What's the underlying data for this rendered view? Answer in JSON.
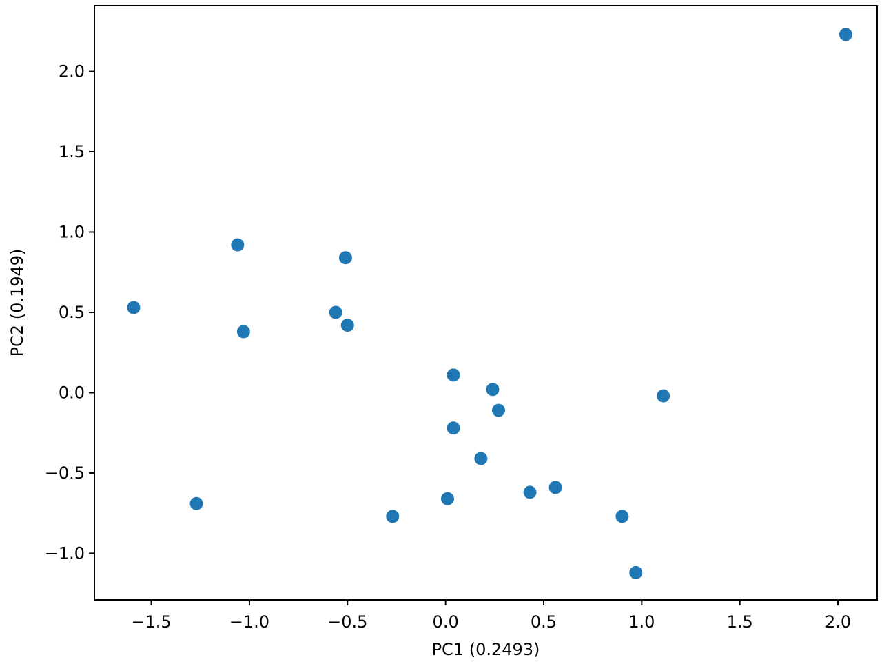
{
  "chart_data": {
    "type": "scatter",
    "title": "",
    "xlabel": "PC1 (0.2493)",
    "ylabel": "PC2 (0.1949)",
    "xlim": [
      -1.79,
      2.2
    ],
    "ylim": [
      -1.29,
      2.41
    ],
    "xticks": [
      -1.5,
      -1.0,
      -0.5,
      0.0,
      0.5,
      1.0,
      1.5,
      2.0
    ],
    "xtick_labels": [
      "−1.5",
      "−1.0",
      "−0.5",
      "0.0",
      "0.5",
      "1.0",
      "1.5",
      "2.0"
    ],
    "yticks": [
      -1.0,
      -0.5,
      0.0,
      0.5,
      1.0,
      1.5,
      2.0
    ],
    "ytick_labels": [
      "−1.0",
      "−0.5",
      "0.0",
      "0.5",
      "1.0",
      "1.5",
      "2.0"
    ],
    "grid": false,
    "marker_color": "#1f77b4",
    "points": [
      {
        "x": 2.04,
        "y": 2.23
      },
      {
        "x": -1.06,
        "y": 0.92
      },
      {
        "x": -0.51,
        "y": 0.84
      },
      {
        "x": -1.59,
        "y": 0.53
      },
      {
        "x": -0.56,
        "y": 0.5
      },
      {
        "x": -0.5,
        "y": 0.42
      },
      {
        "x": -1.03,
        "y": 0.38
      },
      {
        "x": 0.04,
        "y": 0.11
      },
      {
        "x": 0.24,
        "y": 0.02
      },
      {
        "x": 1.11,
        "y": -0.02
      },
      {
        "x": 0.27,
        "y": -0.11
      },
      {
        "x": 0.04,
        "y": -0.22
      },
      {
        "x": 0.18,
        "y": -0.41
      },
      {
        "x": 0.56,
        "y": -0.59
      },
      {
        "x": 0.43,
        "y": -0.62
      },
      {
        "x": 0.01,
        "y": -0.66
      },
      {
        "x": -1.27,
        "y": -0.69
      },
      {
        "x": -0.27,
        "y": -0.77
      },
      {
        "x": 0.9,
        "y": -0.77
      },
      {
        "x": 0.97,
        "y": -1.12
      }
    ]
  }
}
